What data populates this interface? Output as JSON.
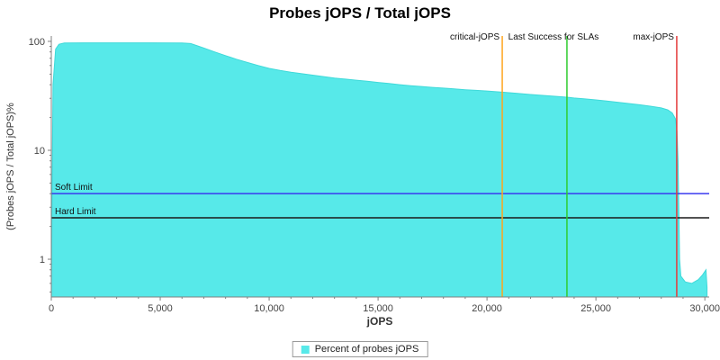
{
  "chart_data": {
    "type": "area",
    "title": "Probes jOPS / Total jOPS",
    "xlabel": "jOPS",
    "ylabel": "(Probes jOPS / Total jOPS)%",
    "x_scale": "linear",
    "y_scale": "log",
    "xlim": [
      0,
      30200
    ],
    "ylim": [
      0.45,
      112
    ],
    "x_ticks": [
      0,
      5000,
      10000,
      15000,
      20000,
      25000,
      30000
    ],
    "x_tick_labels": [
      "0",
      "5,000",
      "10,000",
      "15,000",
      "20,000",
      "25,000",
      "30,000"
    ],
    "y_ticks": [
      1,
      10,
      100
    ],
    "y_tick_labels": [
      "1",
      "10",
      "100"
    ],
    "grid": false,
    "legend_position": "bottom",
    "series": [
      {
        "name": "Percent of probes jOPS",
        "color": "#57E9E9",
        "edge_color": "#3FD9D9",
        "points": [
          [
            0,
            0.5
          ],
          [
            80,
            40
          ],
          [
            200,
            85
          ],
          [
            350,
            94
          ],
          [
            600,
            96.5
          ],
          [
            1500,
            97
          ],
          [
            3000,
            97
          ],
          [
            4500,
            97
          ],
          [
            6000,
            96.5
          ],
          [
            6400,
            95.5
          ],
          [
            6700,
            91
          ],
          [
            7000,
            87
          ],
          [
            7500,
            80
          ],
          [
            8000,
            74
          ],
          [
            8500,
            68.5
          ],
          [
            9000,
            64
          ],
          [
            9500,
            60
          ],
          [
            10000,
            56.5
          ],
          [
            10500,
            54
          ],
          [
            11000,
            52
          ],
          [
            11500,
            50.5
          ],
          [
            12000,
            49
          ],
          [
            12500,
            47.5
          ],
          [
            13000,
            46
          ],
          [
            13500,
            45
          ],
          [
            14000,
            44
          ],
          [
            14500,
            43
          ],
          [
            15000,
            42
          ],
          [
            15500,
            41
          ],
          [
            16000,
            40
          ],
          [
            16500,
            39.2
          ],
          [
            17000,
            38.5
          ],
          [
            17500,
            37.8
          ],
          [
            18000,
            37.2
          ],
          [
            18500,
            36.6
          ],
          [
            19000,
            36
          ],
          [
            19500,
            35.5
          ],
          [
            20000,
            35
          ],
          [
            20700,
            34.2
          ],
          [
            21400,
            33.3
          ],
          [
            22000,
            32.5
          ],
          [
            22700,
            31.7
          ],
          [
            23400,
            31
          ],
          [
            23670,
            30.7
          ],
          [
            24000,
            30.2
          ],
          [
            24500,
            29.6
          ],
          [
            25000,
            29
          ],
          [
            25500,
            28.3
          ],
          [
            26000,
            27.6
          ],
          [
            26500,
            26.9
          ],
          [
            27000,
            26.2
          ],
          [
            27500,
            25.4
          ],
          [
            28000,
            24.5
          ],
          [
            28300,
            23.5
          ],
          [
            28500,
            22
          ],
          [
            28650,
            19.5
          ],
          [
            28720,
            15
          ],
          [
            28770,
            8
          ],
          [
            28810,
            2.5
          ],
          [
            28840,
            1
          ],
          [
            28900,
            0.7
          ],
          [
            29100,
            0.62
          ],
          [
            29400,
            0.6
          ],
          [
            29700,
            0.65
          ],
          [
            29900,
            0.72
          ],
          [
            30050,
            0.8
          ],
          [
            30100,
            0.55
          ]
        ]
      }
    ],
    "vlines": [
      {
        "label": "critical-jOPS",
        "x": 20700,
        "color": "#FFA51E",
        "label_align": "end",
        "label_x": 20700
      },
      {
        "label": "Last Success for SLAs",
        "x": 23670,
        "color": "#2FCC2F",
        "label_align": "start",
        "label_x": 20850
      },
      {
        "label": "max-jOPS",
        "x": 28710,
        "color": "#E43B3B",
        "label_align": "end",
        "label_x": 28710
      }
    ],
    "hlines": [
      {
        "label": "Soft Limit",
        "y": 4.0,
        "color": "#3A3AEF"
      },
      {
        "label": "Hard Limit",
        "y": 2.4,
        "color": "#1A1A1A"
      }
    ],
    "legend": {
      "position": "bottom",
      "items": [
        {
          "label": "Percent of probes jOPS",
          "color": "#57E9E9"
        }
      ]
    }
  }
}
